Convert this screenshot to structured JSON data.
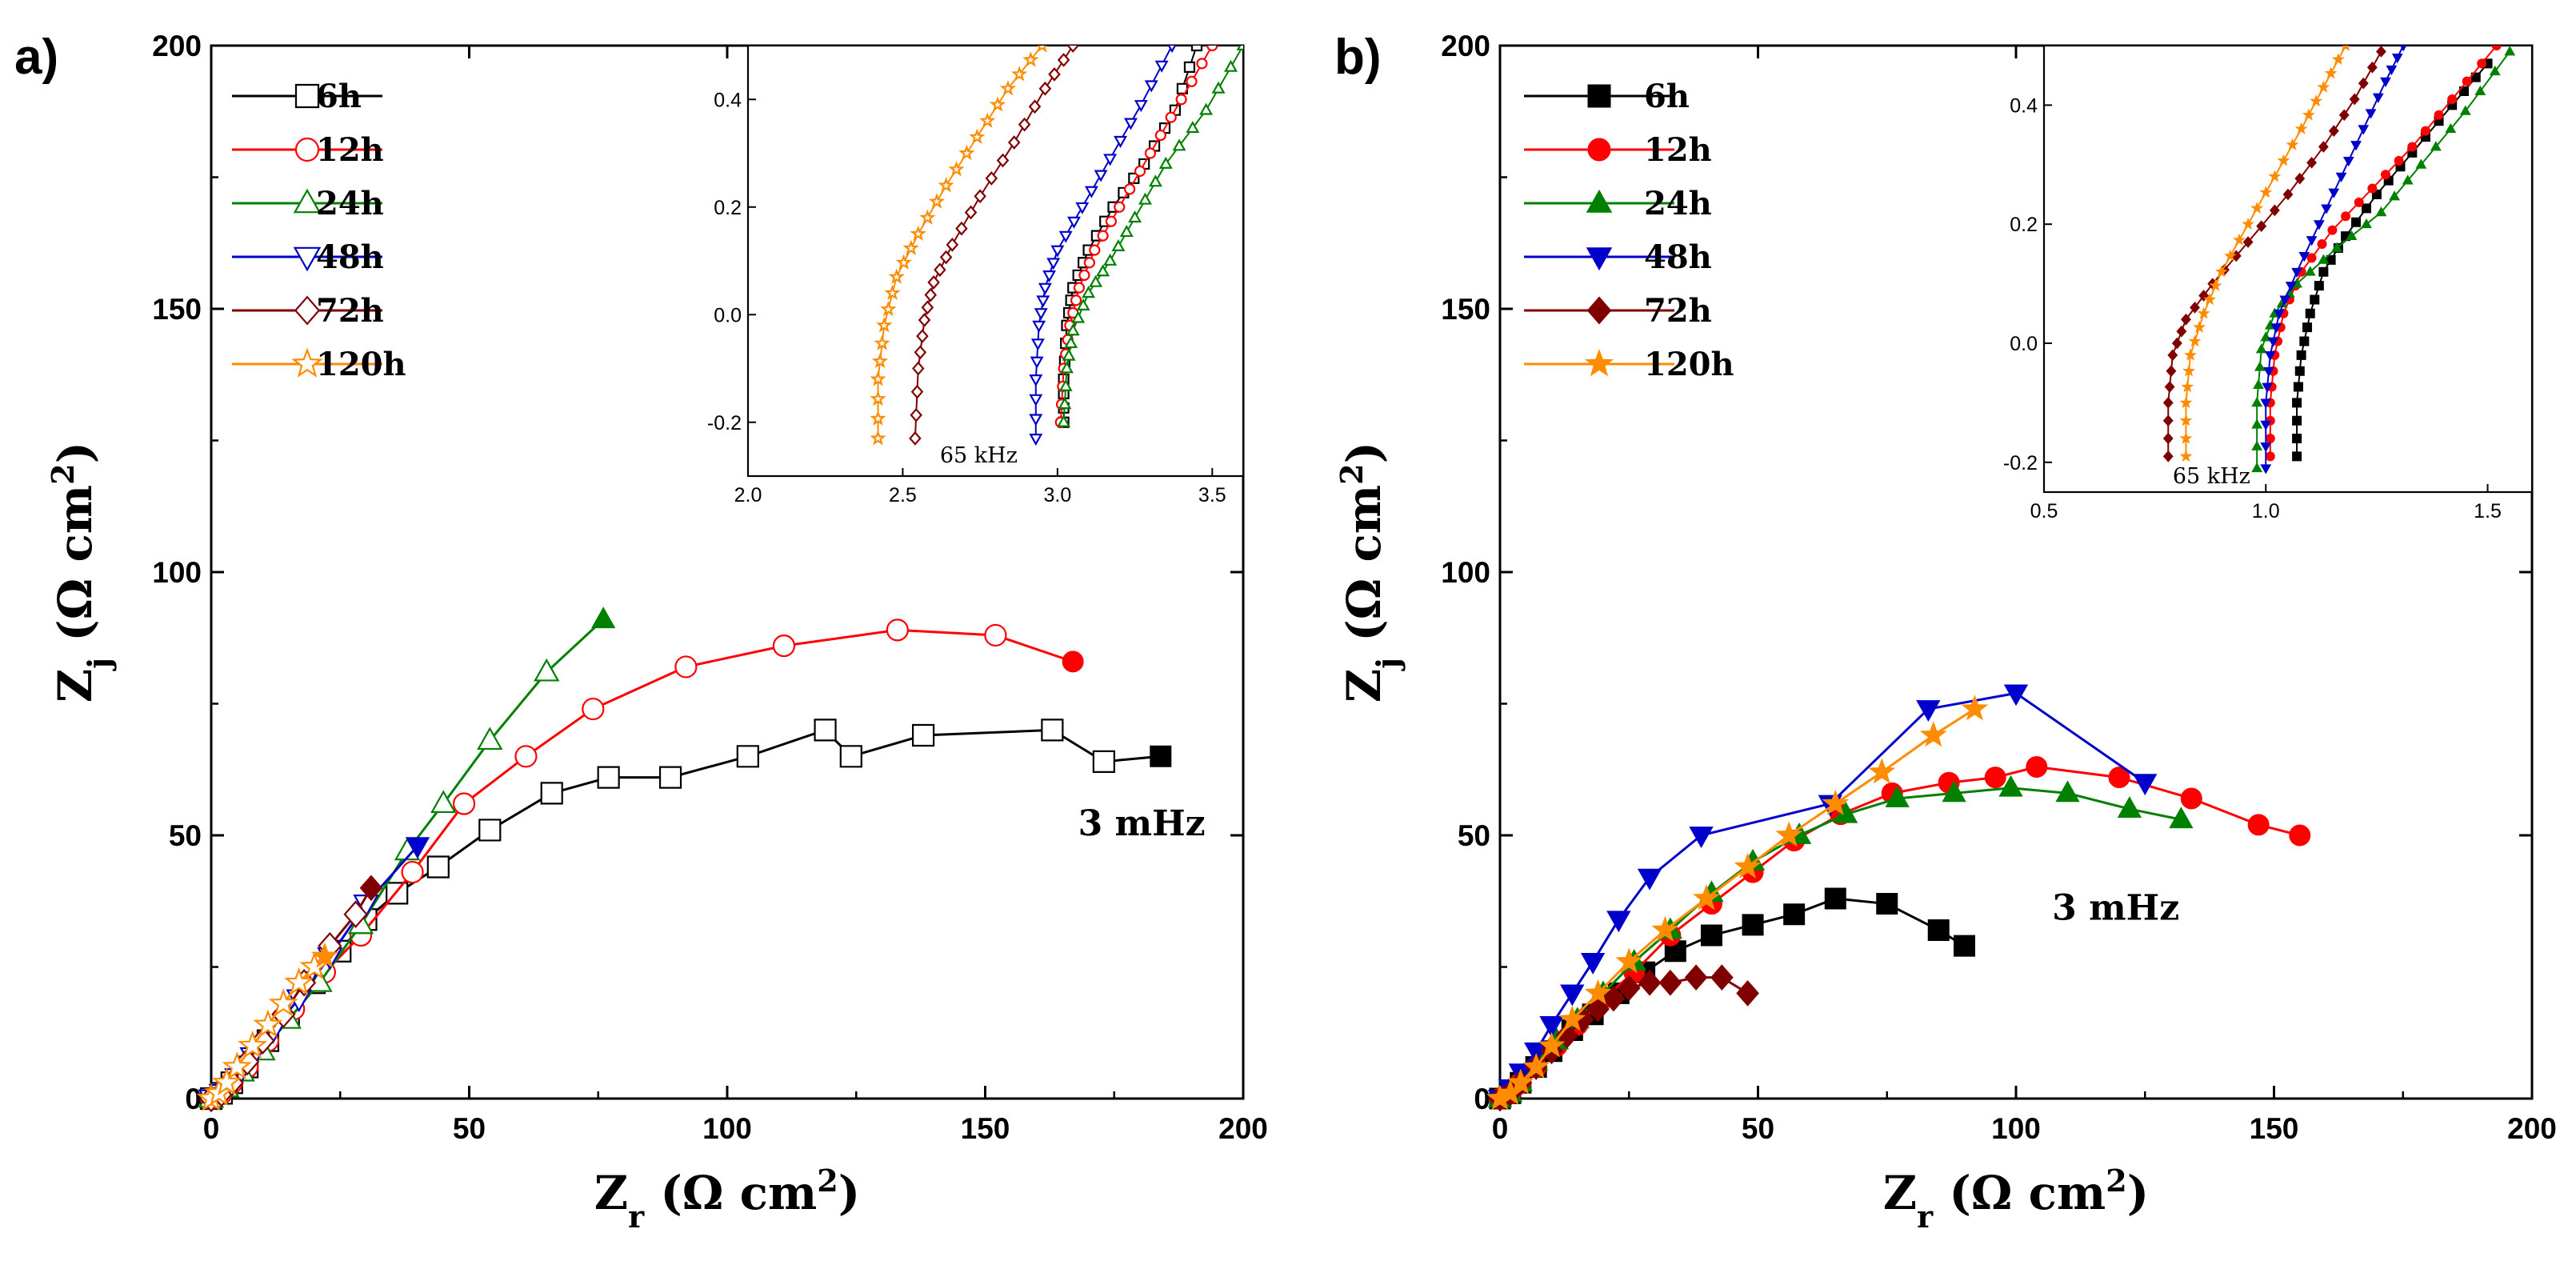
{
  "colors": {
    "6h": "#000000",
    "12h": "#ff0000",
    "24h": "#008000",
    "48h": "#0000cc",
    "72h": "#800000",
    "120h": "#ff8c00"
  },
  "chart_data": [
    {
      "type": "line",
      "panel": "a)",
      "marker_style": "open",
      "xlabel": {
        "main": "Z",
        "sub": "r",
        "unit": "(Ω cm",
        "sup": "2",
        "close": ")"
      },
      "ylabel": {
        "main": "Z",
        "sub": "j",
        "unit": "(Ω cm",
        "sup": "2",
        "close": ")"
      },
      "xlim": [
        0,
        200
      ],
      "ylim": [
        0,
        200
      ],
      "xticks": [
        0,
        50,
        100,
        150,
        200
      ],
      "yticks": [
        0,
        50,
        100,
        150,
        200
      ],
      "annotation": "3 mHz",
      "annotation_at": [
        168,
        50
      ],
      "series": [
        {
          "name": "6h",
          "marker": "square",
          "x": [
            0,
            2,
            4,
            7,
            11,
            15,
            20,
            25,
            30,
            36,
            44,
            54,
            66,
            77,
            89,
            104,
            119,
            124,
            138,
            163,
            173,
            184
          ],
          "y": [
            0,
            1,
            3,
            6,
            11,
            16,
            22,
            28,
            34,
            39,
            44,
            51,
            58,
            61,
            61,
            65,
            70,
            65,
            69,
            70,
            64,
            65
          ]
        },
        {
          "name": "12h",
          "marker": "circle",
          "x": [
            0,
            2,
            4,
            7,
            11,
            16,
            22,
            29,
            39,
            49,
            61,
            74,
            92,
            111,
            133,
            152,
            167
          ],
          "y": [
            0,
            1,
            3,
            6,
            11,
            17,
            24,
            31,
            43,
            56,
            65,
            74,
            82,
            86,
            89,
            88,
            83
          ]
        },
        {
          "name": "24h",
          "marker": "triangle-up",
          "x": [
            0,
            3,
            6,
            10,
            15,
            21,
            29,
            38,
            45,
            54,
            65,
            76
          ],
          "y": [
            0,
            2,
            5,
            9,
            15,
            22,
            33,
            47,
            56,
            68,
            81,
            91
          ]
        },
        {
          "name": "48h",
          "marker": "triangle-down",
          "x": [
            0,
            2,
            5,
            8,
            12,
            17,
            23,
            30,
            40
          ],
          "y": [
            0,
            1,
            4,
            8,
            13,
            19,
            27,
            37,
            48
          ]
        },
        {
          "name": "72h",
          "marker": "diamond",
          "x": [
            0,
            2,
            4,
            7,
            10,
            14,
            18,
            23,
            28,
            31
          ],
          "y": [
            0,
            1,
            3,
            7,
            11,
            16,
            22,
            29,
            35,
            40
          ]
        },
        {
          "name": "120h",
          "marker": "star",
          "x": [
            0,
            1.5,
            3,
            5,
            8,
            11,
            14,
            17,
            20,
            22
          ],
          "y": [
            0,
            1,
            3,
            6,
            10,
            14,
            18,
            22,
            25,
            27
          ]
        }
      ],
      "inset": {
        "xlim": [
          2.0,
          3.6
        ],
        "ylim": [
          -0.3,
          0.5
        ],
        "xticks": [
          2.0,
          2.5,
          3.0,
          3.5
        ],
        "xtick_labels": [
          "2.0",
          "2.5",
          "3.0",
          "3.5"
        ],
        "yticks": [
          -0.2,
          0.0,
          0.2,
          0.4
        ],
        "ytick_labels": [
          "-0.2",
          "0.0",
          "0.2",
          "0.4"
        ],
        "annotation": "65 kHz",
        "annotation_at": [
          2.62,
          -0.275
        ],
        "series": [
          {
            "name": "6h",
            "x": [
              3.02,
              3.02,
              3.03,
              3.05,
              3.1,
              3.18,
              3.28,
              3.38,
              3.45
            ],
            "y": [
              -0.2,
              -0.12,
              -0.02,
              0.05,
              0.12,
              0.2,
              0.28,
              0.38,
              0.5
            ]
          },
          {
            "name": "12h",
            "x": [
              3.01,
              3.02,
              3.04,
              3.07,
              3.12,
              3.2,
              3.3,
              3.4,
              3.5
            ],
            "y": [
              -0.2,
              -0.1,
              -0.02,
              0.05,
              0.12,
              0.2,
              0.3,
              0.4,
              0.5
            ]
          },
          {
            "name": "24h",
            "x": [
              3.02,
              3.03,
              3.05,
              3.1,
              3.17,
              3.25,
              3.35,
              3.48,
              3.6
            ],
            "y": [
              -0.2,
              -0.1,
              -0.03,
              0.04,
              0.1,
              0.18,
              0.28,
              0.38,
              0.5
            ]
          },
          {
            "name": "48h",
            "x": [
              2.93,
              2.93,
              2.94,
              2.96,
              3.0,
              3.08,
              3.17,
              3.27,
              3.37
            ],
            "y": [
              -0.23,
              -0.12,
              -0.02,
              0.05,
              0.12,
              0.2,
              0.29,
              0.39,
              0.5
            ]
          },
          {
            "name": "72h",
            "x": [
              2.54,
              2.55,
              2.57,
              2.6,
              2.66,
              2.75,
              2.86,
              2.96,
              3.05
            ],
            "y": [
              -0.23,
              -0.1,
              -0.01,
              0.06,
              0.13,
              0.22,
              0.32,
              0.42,
              0.5
            ]
          },
          {
            "name": "120h",
            "x": [
              2.42,
              2.42,
              2.44,
              2.48,
              2.55,
              2.64,
              2.74,
              2.84,
              2.95
            ],
            "y": [
              -0.23,
              -0.12,
              -0.02,
              0.07,
              0.15,
              0.24,
              0.33,
              0.42,
              0.5
            ]
          }
        ]
      }
    },
    {
      "type": "line",
      "panel": "b)",
      "marker_style": "filled",
      "xlabel": {
        "main": "Z",
        "sub": "r",
        "unit": "(Ω cm",
        "sup": "2",
        "close": ")"
      },
      "ylabel": {
        "main": "Z",
        "sub": "j",
        "unit": "(Ω cm",
        "sup": "2",
        "close": ")"
      },
      "xlim": [
        0,
        200
      ],
      "ylim": [
        0,
        200
      ],
      "xticks": [
        0,
        50,
        100,
        150,
        200
      ],
      "yticks": [
        0,
        50,
        100,
        150,
        200
      ],
      "annotation": "3 mHz",
      "annotation_at": [
        107,
        34
      ],
      "series": [
        {
          "name": "6h",
          "marker": "square",
          "x": [
            0,
            2,
            4,
            7,
            10,
            14,
            18,
            23,
            28,
            34,
            41,
            49,
            57,
            65,
            75,
            85,
            90
          ],
          "y": [
            0,
            1,
            3,
            6,
            9,
            13,
            16,
            20,
            24,
            28,
            31,
            33,
            35,
            38,
            37,
            32,
            29
          ]
        },
        {
          "name": "12h",
          "marker": "circle",
          "x": [
            0,
            2,
            4,
            7,
            11,
            15,
            20,
            26,
            33,
            41,
            49,
            57,
            66,
            76,
            87,
            96,
            104,
            120,
            134,
            147,
            155
          ],
          "y": [
            0,
            1,
            3,
            6,
            10,
            14,
            19,
            24,
            31,
            37,
            43,
            49,
            54,
            58,
            60,
            61,
            63,
            61,
            57,
            52,
            50
          ]
        },
        {
          "name": "24h",
          "marker": "triangle-up",
          "x": [
            0,
            2,
            4,
            7,
            11,
            15,
            20,
            26,
            33,
            41,
            49,
            58,
            67,
            77,
            88,
            99,
            110,
            122,
            132
          ],
          "y": [
            0,
            1,
            3,
            7,
            11,
            15,
            20,
            26,
            32,
            39,
            45,
            50,
            54,
            57,
            58,
            59,
            58,
            55,
            53
          ]
        },
        {
          "name": "48h",
          "marker": "triangle-down",
          "x": [
            0,
            2,
            4,
            7,
            10,
            14,
            18,
            23,
            29,
            39,
            64,
            83,
            100,
            125
          ],
          "y": [
            0,
            2,
            5,
            9,
            14,
            20,
            26,
            34,
            42,
            50,
            56,
            74,
            77,
            60
          ]
        },
        {
          "name": "72h",
          "marker": "diamond",
          "x": [
            0,
            2,
            4,
            7,
            10,
            13,
            16,
            19,
            22,
            25,
            29,
            33,
            38,
            43,
            48
          ],
          "y": [
            0,
            1,
            3,
            6,
            9,
            12,
            15,
            17,
            19,
            21,
            22,
            22,
            23,
            23,
            20
          ]
        },
        {
          "name": "120h",
          "marker": "star",
          "x": [
            0,
            2,
            4,
            7,
            10,
            14,
            19,
            25,
            32,
            40,
            48,
            56,
            65,
            74,
            84,
            92
          ],
          "y": [
            0,
            1,
            3,
            6,
            10,
            15,
            20,
            26,
            32,
            38,
            44,
            50,
            56,
            62,
            69,
            74
          ]
        }
      ],
      "inset": {
        "xlim": [
          0.5,
          1.6
        ],
        "ylim": [
          -0.25,
          0.5
        ],
        "xticks": [
          0.5,
          1.0,
          1.5
        ],
        "xtick_labels": [
          "0.5",
          "1.0",
          "1.5"
        ],
        "yticks": [
          -0.2,
          0.0,
          0.2,
          0.4
        ],
        "ytick_labels": [
          "-0.2",
          "0.0",
          "0.2",
          "0.4"
        ],
        "annotation": "65  kHz",
        "annotation_at": [
          0.79,
          -0.235
        ],
        "series": [
          {
            "name": "6h",
            "x": [
              1.07,
              1.07,
              1.08,
              1.1,
              1.13,
              1.18,
              1.25,
              1.33,
              1.42,
              1.5
            ],
            "y": [
              -0.19,
              -0.1,
              -0.02,
              0.05,
              0.12,
              0.18,
              0.25,
              0.32,
              0.4,
              0.47
            ]
          },
          {
            "name": "12h",
            "x": [
              1.01,
              1.01,
              1.02,
              1.04,
              1.08,
              1.15,
              1.24,
              1.33,
              1.42,
              1.52
            ],
            "y": [
              -0.19,
              -0.1,
              -0.02,
              0.05,
              0.12,
              0.19,
              0.26,
              0.33,
              0.41,
              0.5
            ]
          },
          {
            "name": "24h",
            "x": [
              0.98,
              0.98,
              0.99,
              1.02,
              1.07,
              1.16,
              1.26,
              1.35,
              1.45,
              1.55
            ],
            "y": [
              -0.21,
              -0.1,
              -0.01,
              0.05,
              0.1,
              0.16,
              0.22,
              0.3,
              0.39,
              0.49
            ]
          },
          {
            "name": "48h",
            "x": [
              1.0,
              1.0,
              1.01,
              1.03,
              1.07,
              1.12,
              1.17,
              1.22,
              1.27,
              1.31
            ],
            "y": [
              -0.21,
              -0.1,
              -0.02,
              0.05,
              0.12,
              0.2,
              0.28,
              0.36,
              0.44,
              0.5
            ]
          },
          {
            "name": "72h",
            "x": [
              0.78,
              0.78,
              0.79,
              0.82,
              0.88,
              0.96,
              1.05,
              1.13,
              1.2,
              1.26
            ],
            "y": [
              -0.19,
              -0.1,
              -0.02,
              0.04,
              0.1,
              0.17,
              0.25,
              0.33,
              0.41,
              0.49
            ]
          },
          {
            "name": "120h",
            "x": [
              0.82,
              0.82,
              0.83,
              0.86,
              0.9,
              0.96,
              1.02,
              1.08,
              1.13,
              1.18
            ],
            "y": [
              -0.19,
              -0.1,
              -0.02,
              0.05,
              0.12,
              0.2,
              0.28,
              0.36,
              0.43,
              0.5
            ]
          }
        ]
      }
    }
  ]
}
